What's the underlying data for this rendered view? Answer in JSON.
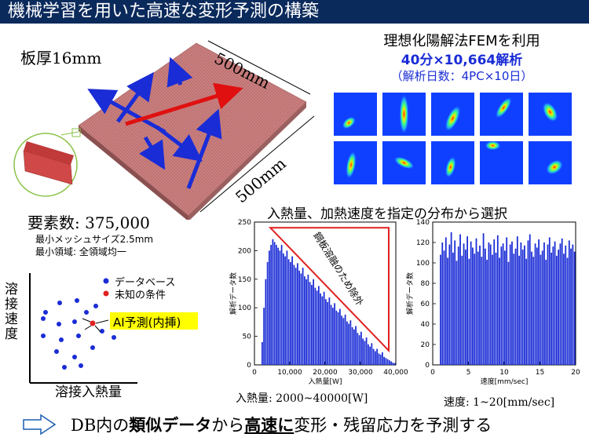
{
  "title": "機械学習を用いた高速な変形予測の構築",
  "plate": {
    "thickness_label": "板厚16mm",
    "dim_top": "500mm",
    "dim_right": "500mm",
    "elements_label": "要素数: 375,000",
    "mesh_min": "最小メッシュサイズ2.5mm",
    "mesh_region": "最小領域: 全領域均一"
  },
  "fem": {
    "line1": "理想化陽解法FEMを利用",
    "line2": "40分×10,664解析",
    "line3": "（解析日数：4PC×10日）"
  },
  "distribution_title": "入熱量、加熱速度を指定の分布から選択",
  "legend": {
    "database": "データベース",
    "unknown": "未知の条件",
    "ai_label": "AI予測(内挿)",
    "y_axis": "溶接速度",
    "x_axis": "溶接入熱量"
  },
  "colors": {
    "database_dot": "#1a2cd6",
    "unknown_dot": "#e02020",
    "ai_box": "#ffff00",
    "histogram": "#1a2cd6",
    "exclusion": "#e02020",
    "title_bar": "#0b2a5c"
  },
  "chart_data": [
    {
      "type": "bar",
      "ylabel": "解析データ数",
      "xlabel": "入熱量[W]",
      "xlim": [
        0,
        40000
      ],
      "ylim": [
        0,
        250
      ],
      "xticks": [
        "0",
        "10,000",
        "20,000",
        "30,000",
        "40,000"
      ],
      "yticks": [
        "0",
        "50",
        "100",
        "150",
        "200",
        "250"
      ],
      "annotation": "鋼板溶融のため除外",
      "caption": "入熱量: 2000~40000[W]",
      "bins_x": [
        2000,
        2500,
        3000,
        3500,
        4000,
        4500,
        5000,
        5500,
        6000,
        6500,
        7000,
        7500,
        8000,
        8500,
        9000,
        9500,
        10000,
        10500,
        11000,
        11500,
        12000,
        12500,
        13000,
        13500,
        14000,
        14500,
        15000,
        15500,
        16000,
        16500,
        17000,
        17500,
        18000,
        18500,
        19000,
        19500,
        20000,
        20500,
        21000,
        21500,
        22000,
        22500,
        23000,
        23500,
        24000,
        24500,
        25000,
        25500,
        26000,
        26500,
        27000,
        27500,
        28000,
        28500,
        29000,
        29500,
        30000,
        30500,
        31000,
        31500,
        32000,
        32500,
        33000,
        33500,
        34000,
        34500,
        35000,
        35500,
        36000,
        36500,
        37000,
        37500,
        38000,
        38500,
        39000,
        39500
      ],
      "values": [
        40,
        100,
        150,
        180,
        200,
        210,
        220,
        215,
        210,
        205,
        200,
        210,
        195,
        190,
        200,
        185,
        180,
        190,
        175,
        170,
        178,
        165,
        160,
        170,
        155,
        150,
        158,
        145,
        140,
        150,
        135,
        130,
        138,
        125,
        120,
        128,
        115,
        110,
        118,
        105,
        100,
        108,
        95,
        92,
        98,
        86,
        82,
        88,
        76,
        72,
        78,
        66,
        62,
        68,
        56,
        52,
        58,
        46,
        42,
        48,
        36,
        32,
        38,
        28,
        24,
        28,
        20,
        18,
        22,
        14,
        12,
        10,
        8,
        6,
        4,
        3
      ]
    },
    {
      "type": "bar",
      "ylabel": "解析データ数",
      "xlabel": "速度[mm/sec]",
      "xlim": [
        0,
        20
      ],
      "ylim": [
        0,
        140
      ],
      "xticks": [
        "0",
        "5",
        "10",
        "15",
        "20"
      ],
      "yticks": [
        "0",
        "20",
        "40",
        "60",
        "80",
        "100",
        "120",
        "140"
      ],
      "caption": "速度: 1~20[mm/sec]",
      "bins_x": [
        1,
        1.25,
        1.5,
        1.75,
        2,
        2.25,
        2.5,
        2.75,
        3,
        3.25,
        3.5,
        3.75,
        4,
        4.25,
        4.5,
        4.75,
        5,
        5.25,
        5.5,
        5.75,
        6,
        6.25,
        6.5,
        6.75,
        7,
        7.25,
        7.5,
        7.75,
        8,
        8.25,
        8.5,
        8.75,
        9,
        9.25,
        9.5,
        9.75,
        10,
        10.25,
        10.5,
        10.75,
        11,
        11.25,
        11.5,
        11.75,
        12,
        12.25,
        12.5,
        12.75,
        13,
        13.25,
        13.5,
        13.75,
        14,
        14.25,
        14.5,
        14.75,
        15,
        15.25,
        15.5,
        15.75,
        16,
        16.25,
        16.5,
        16.75,
        17,
        17.25,
        17.5,
        17.75,
        18,
        18.25,
        18.5,
        18.75,
        19,
        19.25,
        19.5,
        19.75
      ],
      "values": [
        108,
        120,
        112,
        125,
        105,
        118,
        130,
        110,
        122,
        102,
        116,
        128,
        107,
        119,
        113,
        126,
        104,
        121,
        115,
        109,
        124,
        111,
        117,
        106,
        129,
        114,
        103,
        120,
        118,
        108,
        123,
        110,
        127,
        105,
        116,
        119,
        112,
        125,
        101,
        118,
        121,
        109,
        114,
        126,
        107,
        120,
        113,
        117,
        104,
        122,
        128,
        111,
        106,
        119,
        115,
        123,
        108,
        112,
        120,
        103,
        118,
        125,
        110,
        116,
        121,
        107,
        113,
        119,
        124,
        109,
        117,
        105,
        122,
        114,
        118,
        111
      ]
    }
  ],
  "bottom": {
    "prefix": "DB内の",
    "bold1": "類似データ",
    "mid1": "から",
    "bold2": "高速に",
    "suffix": "変形・残留応力を予測する"
  }
}
